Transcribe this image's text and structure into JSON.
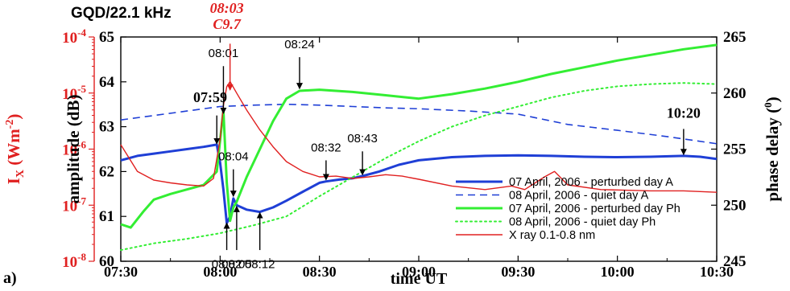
{
  "panel_label": "a)",
  "chart_data": {
    "type": "line",
    "title": "GQD/22.1 kHz",
    "flare": {
      "time": "08:03",
      "class": "C9.7"
    },
    "xlabel": "time UT",
    "x_ticks": [
      "07:30",
      "08:00",
      "08:30",
      "09:00",
      "09:30",
      "10:00",
      "10:30"
    ],
    "xlim": [
      "07:30",
      "10:30"
    ],
    "y_left_label": "amplitude (dB)",
    "y_left_ticks": [
      60,
      61,
      62,
      63,
      64,
      65
    ],
    "y_left_lim": [
      60,
      65
    ],
    "y_right_label": "phase delay (°)",
    "y_right_ticks": [
      245,
      250,
      255,
      260,
      265
    ],
    "y_right_lim": [
      245,
      265
    ],
    "y_xray_label": "I_X (Wm^-2)",
    "y_xray_ticks": [
      "10^-8",
      "10^-7",
      "10^-6",
      "10^-5",
      "10^-4"
    ],
    "y_xray_lim": [
      1e-08,
      0.0001
    ],
    "series": [
      {
        "name": "07 April, 2006 - perturbed day A",
        "axis": "amplitude",
        "color": "#1f3fd6",
        "style": "solid",
        "width": 3,
        "points": [
          [
            "07:30",
            62.25
          ],
          [
            "07:35",
            62.35
          ],
          [
            "07:40",
            62.4
          ],
          [
            "07:45",
            62.45
          ],
          [
            "07:50",
            62.5
          ],
          [
            "07:55",
            62.55
          ],
          [
            "07:59",
            62.6
          ],
          [
            "08:00",
            62.2
          ],
          [
            "08:01",
            61.6
          ],
          [
            "08:02",
            60.85
          ],
          [
            "08:03",
            61.0
          ],
          [
            "08:04",
            61.4
          ],
          [
            "08:05",
            61.25
          ],
          [
            "08:08",
            61.15
          ],
          [
            "08:12",
            61.1
          ],
          [
            "08:16",
            61.2
          ],
          [
            "08:20",
            61.35
          ],
          [
            "08:25",
            61.55
          ],
          [
            "08:30",
            61.75
          ],
          [
            "08:32",
            61.78
          ],
          [
            "08:36",
            61.82
          ],
          [
            "08:40",
            61.85
          ],
          [
            "08:43",
            61.9
          ],
          [
            "08:48",
            62.0
          ],
          [
            "08:54",
            62.15
          ],
          [
            "09:00",
            62.25
          ],
          [
            "09:10",
            62.32
          ],
          [
            "09:20",
            62.35
          ],
          [
            "09:30",
            62.36
          ],
          [
            "09:40",
            62.35
          ],
          [
            "09:50",
            62.33
          ],
          [
            "10:00",
            62.32
          ],
          [
            "10:10",
            62.33
          ],
          [
            "10:20",
            62.35
          ],
          [
            "10:25",
            62.33
          ],
          [
            "10:30",
            62.28
          ]
        ]
      },
      {
        "name": "08 April, 2006 - quiet day A",
        "axis": "amplitude",
        "color": "#1f3fd6",
        "style": "dashed",
        "width": 1.6,
        "points": [
          [
            "07:30",
            63.15
          ],
          [
            "07:40",
            63.25
          ],
          [
            "07:50",
            63.35
          ],
          [
            "08:00",
            63.45
          ],
          [
            "08:10",
            63.48
          ],
          [
            "08:20",
            63.5
          ],
          [
            "08:30",
            63.48
          ],
          [
            "08:40",
            63.45
          ],
          [
            "08:50",
            63.42
          ],
          [
            "09:00",
            63.4
          ],
          [
            "09:15",
            63.35
          ],
          [
            "09:30",
            63.28
          ],
          [
            "09:45",
            63.05
          ],
          [
            "10:00",
            62.92
          ],
          [
            "10:15",
            62.78
          ],
          [
            "10:30",
            62.62
          ]
        ]
      },
      {
        "name": "07 April, 2006 - perturbed day Ph",
        "axis": "phase",
        "color": "#33ee33",
        "style": "solid",
        "width": 3,
        "points": [
          [
            "07:30",
            248.3
          ],
          [
            "07:33",
            248.0
          ],
          [
            "07:37",
            249.5
          ],
          [
            "07:40",
            250.5
          ],
          [
            "07:45",
            251.0
          ],
          [
            "07:50",
            251.4
          ],
          [
            "07:55",
            251.8
          ],
          [
            "07:59",
            253.0
          ],
          [
            "08:01",
            258.5
          ],
          [
            "08:02",
            252.0
          ],
          [
            "08:03",
            248.6
          ],
          [
            "08:04",
            249.8
          ],
          [
            "08:05",
            250.3
          ],
          [
            "08:08",
            252.5
          ],
          [
            "08:12",
            255.0
          ],
          [
            "08:16",
            257.5
          ],
          [
            "08:20",
            259.5
          ],
          [
            "08:24",
            260.2
          ],
          [
            "08:30",
            260.3
          ],
          [
            "08:40",
            260.1
          ],
          [
            "08:50",
            259.8
          ],
          [
            "09:00",
            259.5
          ],
          [
            "09:10",
            259.9
          ],
          [
            "09:20",
            260.4
          ],
          [
            "09:30",
            261.0
          ],
          [
            "09:40",
            261.7
          ],
          [
            "09:50",
            262.3
          ],
          [
            "10:00",
            262.9
          ],
          [
            "10:10",
            263.4
          ],
          [
            "10:20",
            263.9
          ],
          [
            "10:30",
            264.3
          ]
        ]
      },
      {
        "name": "08 April, 2006 - quiet day Ph",
        "axis": "phase",
        "color": "#33ee33",
        "style": "dotted",
        "width": 2,
        "points": [
          [
            "07:30",
            246.0
          ],
          [
            "07:40",
            246.6
          ],
          [
            "07:50",
            247.0
          ],
          [
            "08:00",
            247.5
          ],
          [
            "08:10",
            248.2
          ],
          [
            "08:20",
            249.0
          ],
          [
            "08:30",
            250.8
          ],
          [
            "08:40",
            252.5
          ],
          [
            "08:50",
            254.2
          ],
          [
            "09:00",
            255.7
          ],
          [
            "09:10",
            257.0
          ],
          [
            "09:20",
            258.0
          ],
          [
            "09:30",
            258.8
          ],
          [
            "09:40",
            259.6
          ],
          [
            "09:50",
            260.2
          ],
          [
            "10:00",
            260.6
          ],
          [
            "10:10",
            260.8
          ],
          [
            "10:20",
            260.9
          ],
          [
            "10:30",
            260.8
          ]
        ]
      },
      {
        "name": "X ray 0.1-0.8 nm",
        "axis": "xray",
        "color": "#e02020",
        "style": "solid",
        "width": 1.4,
        "points": [
          [
            "07:30",
            1.2e-06
          ],
          [
            "07:35",
            4e-07
          ],
          [
            "07:40",
            2.8e-07
          ],
          [
            "07:45",
            2.5e-07
          ],
          [
            "07:50",
            2.3e-07
          ],
          [
            "07:55",
            2.2e-07
          ],
          [
            "07:58",
            3e-07
          ],
          [
            "08:00",
            1.5e-06
          ],
          [
            "08:01",
            6e-06
          ],
          [
            "08:02",
            1.3e-05
          ],
          [
            "08:03",
            1.6e-05
          ],
          [
            "08:05",
            1e-05
          ],
          [
            "08:08",
            5e-06
          ],
          [
            "08:12",
            2.2e-06
          ],
          [
            "08:16",
            1.1e-06
          ],
          [
            "08:20",
            6e-07
          ],
          [
            "08:25",
            4e-07
          ],
          [
            "08:30",
            3.2e-07
          ],
          [
            "08:35",
            3.3e-07
          ],
          [
            "08:40",
            3e-07
          ],
          [
            "08:45",
            3.2e-07
          ],
          [
            "08:50",
            3.5e-07
          ],
          [
            "08:55",
            3.3e-07
          ],
          [
            "09:00",
            2.9e-07
          ],
          [
            "09:10",
            2.2e-07
          ],
          [
            "09:20",
            1.9e-07
          ],
          [
            "09:28",
            2.2e-07
          ],
          [
            "09:32",
            1.9e-07
          ],
          [
            "09:38",
            3.2e-07
          ],
          [
            "09:41",
            4e-07
          ],
          [
            "09:45",
            2.3e-07
          ],
          [
            "09:55",
            1.9e-07
          ],
          [
            "10:10",
            1.8e-07
          ],
          [
            "10:20",
            1.8e-07
          ],
          [
            "10:30",
            1.7e-07
          ]
        ]
      }
    ],
    "annotations": [
      {
        "label": "07:59",
        "bold": true,
        "text_at": [
          "07:57",
          63.55
        ],
        "arrow_from": [
          "07:59",
          63.25
        ],
        "arrow_to": [
          "07:59",
          62.62
        ]
      },
      {
        "label": "08:01",
        "bold": false,
        "text_at": [
          "08:01",
          64.55
        ],
        "arrow_from": [
          "08:01",
          64.35
        ],
        "arrow_to": [
          "08:01",
          63.3
        ]
      },
      {
        "label": "08:03",
        "bold": false,
        "flare": true,
        "text_at": null,
        "arrow_from": [
          "08:03",
          64.85
        ],
        "arrow_to": [
          "08:03",
          63.82
        ]
      },
      {
        "label": "08:24",
        "bold": false,
        "text_at": [
          "08:24",
          64.75
        ],
        "arrow_from": [
          "08:24",
          64.55
        ],
        "arrow_to": [
          "08:24",
          63.85
        ]
      },
      {
        "label": "08:04",
        "bold": false,
        "text_at": [
          "08:04",
          62.25
        ],
        "arrow_from": [
          "08:04",
          62.05
        ],
        "arrow_to": [
          "08:04",
          61.45
        ]
      },
      {
        "label": "08:32",
        "bold": false,
        "text_at": [
          "08:32",
          62.45
        ],
        "arrow_from": [
          "08:32",
          62.25
        ],
        "arrow_to": [
          "08:32",
          61.82
        ]
      },
      {
        "label": "08:43",
        "bold": false,
        "text_at": [
          "08:43",
          62.65
        ],
        "arrow_from": [
          "08:43",
          62.45
        ],
        "arrow_to": [
          "08:43",
          61.93
        ]
      },
      {
        "label": "10:20",
        "bold": true,
        "text_at": [
          "10:20",
          63.2
        ],
        "arrow_from": [
          "10:20",
          62.95
        ],
        "arrow_to": [
          "10:20",
          62.38
        ]
      },
      {
        "label": "08:02",
        "bold": false,
        "text_at": [
          "08:02",
          59.85
        ],
        "arrow_from": [
          "08:02",
          60.25
        ],
        "arrow_to": [
          "08:02",
          60.85
        ]
      },
      {
        "label": "08:05",
        "bold": false,
        "text_at": [
          "08:05",
          59.85
        ],
        "arrow_from": [
          "08:05",
          60.25
        ],
        "arrow_to": [
          "08:05",
          61.22
        ]
      },
      {
        "label": "08:12",
        "bold": false,
        "text_at": [
          "08:12",
          59.85
        ],
        "arrow_from": [
          "08:12",
          60.25
        ],
        "arrow_to": [
          "08:12",
          61.08
        ]
      }
    ]
  }
}
